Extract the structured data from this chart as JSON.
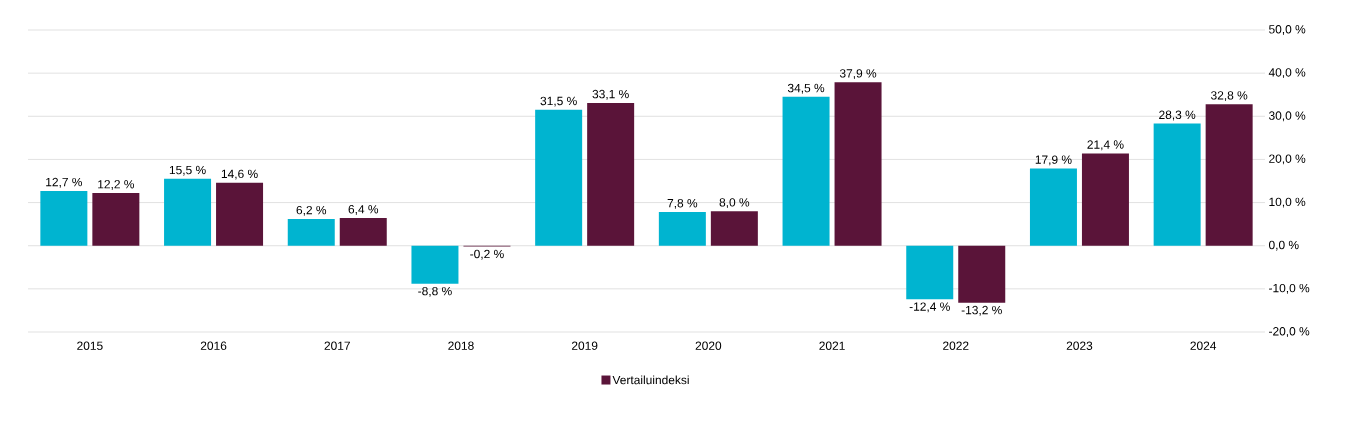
{
  "chart_data": {
    "type": "bar",
    "categories": [
      "2015",
      "2016",
      "2017",
      "2018",
      "2019",
      "2020",
      "2021",
      "2022",
      "2023",
      "2024"
    ],
    "series": [
      {
        "color": "#00b4d0",
        "values": [
          12.7,
          15.5,
          6.2,
          -8.8,
          31.5,
          7.8,
          34.5,
          -12.4,
          17.9,
          28.3
        ],
        "value_labels": [
          "12,7 %",
          "15,5 %",
          "6,2 %",
          "-8,8 %",
          "31,5 %",
          "7,8 %",
          "34,5 %",
          "-12,4 %",
          "17,9 %",
          "28,3 %"
        ]
      },
      {
        "name": "Vertailuindeksi",
        "color": "#5a1439",
        "values": [
          12.2,
          14.6,
          6.4,
          -0.2,
          33.1,
          8.0,
          37.9,
          -13.2,
          21.4,
          32.8
        ],
        "value_labels": [
          "12,2 %",
          "14,6 %",
          "6,4 %",
          "-0,2 %",
          "33,1 %",
          "8,0 %",
          "37,9 %",
          "-13,2 %",
          "21,4 %",
          "32,8 %"
        ]
      }
    ],
    "ylim": [
      -20,
      50
    ],
    "yticks": [
      {
        "value": -20,
        "label": "-20,0 %"
      },
      {
        "value": -10,
        "label": "-10,0 %"
      },
      {
        "value": 0,
        "label": "0,0 %"
      },
      {
        "value": 10,
        "label": "10,0 %"
      },
      {
        "value": 20,
        "label": "20,0 %"
      },
      {
        "value": 30,
        "label": "30,0 %"
      },
      {
        "value": 40,
        "label": "40,0 %"
      },
      {
        "value": 50,
        "label": "50,0 %"
      }
    ],
    "grid": "y",
    "legend": "bottom"
  }
}
